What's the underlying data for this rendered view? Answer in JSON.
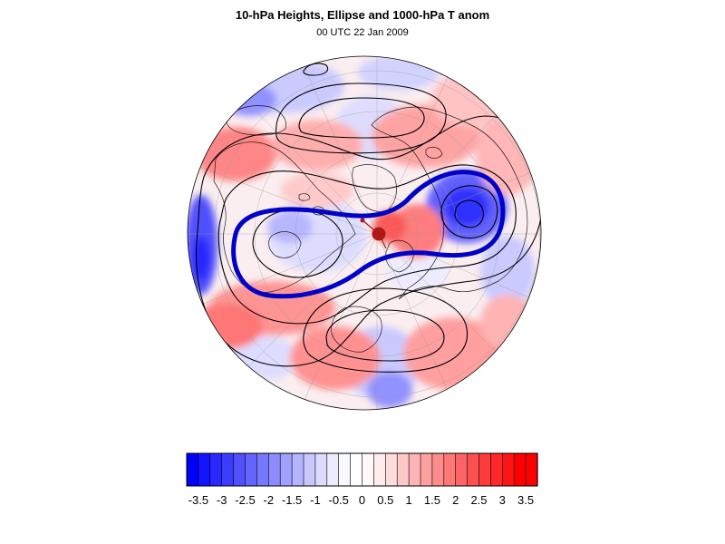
{
  "title": "10-hPa Heights, Ellipse and 1000-hPa T anom",
  "subtitle": "00 UTC 22 Jan 2009",
  "map": {
    "projection": "polar-stereographic-north",
    "overlays": [
      "10-hPa-height-contours",
      "vortex-ellipse",
      "1000-hPa-temperature-anomaly-shading",
      "coastlines",
      "lat-lon-grid"
    ],
    "colors": {
      "ellipse": "#0000c8",
      "center_marker": "#b01818",
      "contour": "#000000",
      "coastline": "#000000",
      "grid": "#9a9a9a"
    }
  },
  "colorbar": {
    "tick_labels": [
      "-3.5",
      "-3",
      "-2.5",
      "-2",
      "-1.5",
      "-1",
      "-0.5",
      "0",
      "0.5",
      "1",
      "1.5",
      "2",
      "2.5",
      "3",
      "3.5"
    ],
    "min": -3.75,
    "max": 3.75,
    "step": 0.25,
    "colors": [
      "#0000ff",
      "#1414ff",
      "#2828ff",
      "#3c3cff",
      "#5050ff",
      "#6464ff",
      "#7878ff",
      "#8c8cff",
      "#a0a0ff",
      "#b4b4ff",
      "#c8c8ff",
      "#dcdcff",
      "#ececff",
      "#f8f8ff",
      "#ffffff",
      "#fff8f8",
      "#ffecec",
      "#ffdcdc",
      "#ffc8c8",
      "#ffb4b4",
      "#ffa0a0",
      "#ff8c8c",
      "#ff7878",
      "#ff6464",
      "#ff5050",
      "#ff3c3c",
      "#ff2828",
      "#ff1414",
      "#ff0000",
      "#ff0000"
    ]
  }
}
